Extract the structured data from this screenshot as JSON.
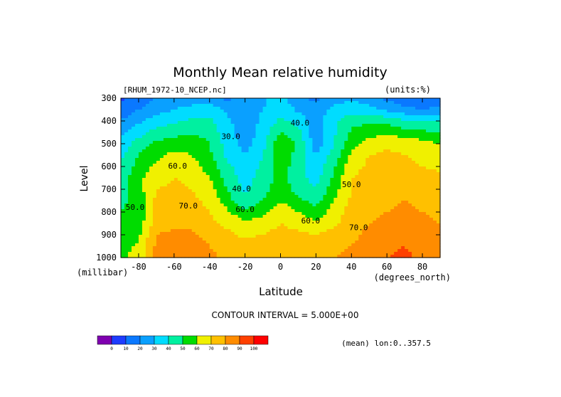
{
  "chart_data": {
    "type": "heatmap",
    "title": "Monthly Mean relative humidity",
    "dataset_label": "[RHUM_1972-10_NCEP.nc]",
    "units_label": "(units:%)",
    "xlabel": "Latitude",
    "ylabel": "Level",
    "x_units_label": "(degrees_north)",
    "y_units_label": "(millibar)",
    "xlim": [
      -90,
      90
    ],
    "ylim": [
      1000,
      300
    ],
    "x_ticks": [
      -80,
      -60,
      -40,
      -20,
      0,
      20,
      40,
      60,
      80
    ],
    "y_ticks": [
      300,
      400,
      500,
      600,
      700,
      800,
      900,
      1000
    ],
    "contour_interval_text": "CONTOUR INTERVAL = 5.000E+00",
    "mean_text": "(mean) lon:0..357.5",
    "contour_labels": [
      {
        "text": "30.0",
        "lat": -28,
        "level": 480
      },
      {
        "text": "40.0",
        "lat": 11,
        "level": 420
      },
      {
        "text": "40.0",
        "lat": -22,
        "level": 710
      },
      {
        "text": "60.0",
        "lat": -58,
        "level": 610
      },
      {
        "text": "60.0",
        "lat": -20,
        "level": 800
      },
      {
        "text": "70.0",
        "lat": -52,
        "level": 785
      },
      {
        "text": "50.0",
        "lat": -82,
        "level": 790
      },
      {
        "text": "50.0",
        "lat": 40,
        "level": 690
      },
      {
        "text": "60.0",
        "lat": 17,
        "level": 850
      },
      {
        "text": "70.0",
        "lat": 44,
        "level": 880
      }
    ],
    "colorbar": {
      "labels": [
        "0",
        "10",
        "20",
        "30",
        "40",
        "50",
        "60",
        "70",
        "80",
        "90",
        "100"
      ],
      "colors": [
        "#7f00b0",
        "#1e3cff",
        "#0a78ff",
        "#0aa0ff",
        "#00dcff",
        "#00f0a0",
        "#00dc00",
        "#f0f000",
        "#ffc000",
        "#ff8c00",
        "#ff4000",
        "#ff0000"
      ]
    },
    "latitudes": [
      -90,
      -80,
      -70,
      -60,
      -50,
      -40,
      -30,
      -20,
      -10,
      0,
      10,
      20,
      30,
      40,
      50,
      60,
      70,
      80,
      90
    ],
    "levels": [
      300,
      350,
      400,
      450,
      500,
      550,
      600,
      650,
      700,
      750,
      800,
      850,
      900,
      950,
      1000
    ],
    "values": [
      [
        8,
        14,
        20,
        22,
        24,
        22,
        18,
        22,
        28,
        34,
        22,
        18,
        24,
        28,
        24,
        18,
        14,
        12,
        14
      ],
      [
        14,
        20,
        26,
        30,
        34,
        36,
        28,
        24,
        30,
        38,
        28,
        24,
        34,
        36,
        34,
        28,
        22,
        20,
        22
      ],
      [
        20,
        28,
        34,
        38,
        42,
        42,
        32,
        24,
        32,
        42,
        36,
        24,
        38,
        46,
        48,
        46,
        42,
        40,
        40
      ],
      [
        26,
        36,
        44,
        46,
        48,
        46,
        34,
        24,
        34,
        50,
        44,
        22,
        38,
        52,
        56,
        58,
        54,
        52,
        50
      ],
      [
        34,
        44,
        52,
        56,
        58,
        50,
        36,
        26,
        36,
        58,
        48,
        24,
        40,
        56,
        64,
        68,
        66,
        64,
        60
      ],
      [
        38,
        50,
        58,
        62,
        60,
        52,
        38,
        30,
        40,
        58,
        46,
        30,
        44,
        62,
        70,
        72,
        70,
        68,
        64
      ],
      [
        42,
        54,
        62,
        66,
        64,
        56,
        42,
        34,
        42,
        56,
        44,
        34,
        48,
        66,
        72,
        74,
        72,
        70,
        68
      ],
      [
        44,
        58,
        66,
        70,
        68,
        60,
        46,
        36,
        44,
        54,
        44,
        36,
        52,
        70,
        74,
        76,
        76,
        74,
        72
      ],
      [
        46,
        56,
        70,
        72,
        70,
        64,
        50,
        38,
        46,
        56,
        46,
        40,
        56,
        70,
        74,
        76,
        78,
        76,
        74
      ],
      [
        48,
        54,
        72,
        74,
        72,
        68,
        54,
        42,
        50,
        60,
        52,
        46,
        60,
        72,
        76,
        78,
        80,
        78,
        76
      ],
      [
        50,
        52,
        72,
        76,
        74,
        70,
        62,
        52,
        58,
        66,
        60,
        54,
        64,
        74,
        78,
        80,
        82,
        80,
        78
      ],
      [
        52,
        54,
        76,
        78,
        78,
        72,
        68,
        62,
        64,
        70,
        66,
        62,
        68,
        76,
        80,
        82,
        84,
        82,
        80
      ],
      [
        54,
        58,
        80,
        82,
        82,
        76,
        72,
        68,
        70,
        74,
        72,
        70,
        74,
        78,
        82,
        84,
        86,
        84,
        82
      ],
      [
        56,
        62,
        82,
        84,
        86,
        80,
        76,
        74,
        76,
        78,
        76,
        76,
        78,
        80,
        84,
        88,
        90,
        86,
        84
      ],
      [
        58,
        64,
        84,
        86,
        84,
        82,
        78,
        78,
        78,
        80,
        78,
        78,
        80,
        82,
        86,
        90,
        92,
        88,
        86
      ]
    ]
  }
}
